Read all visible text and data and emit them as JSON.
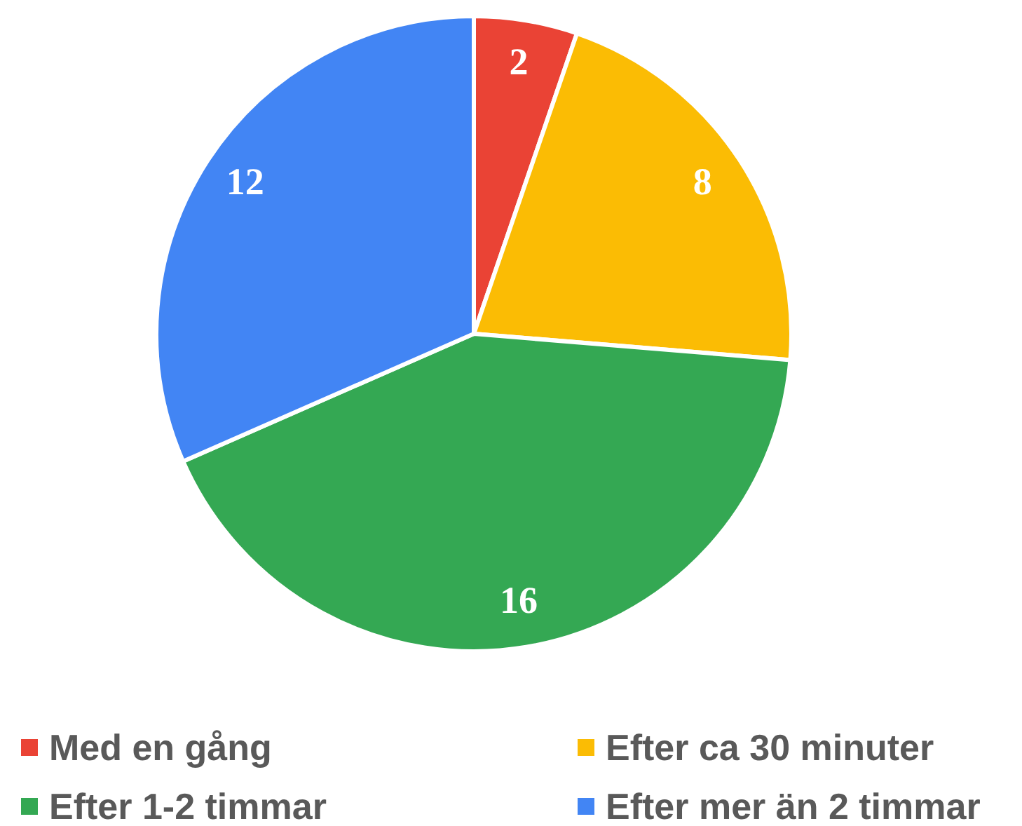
{
  "chart_data": {
    "type": "pie",
    "categories": [
      "Med en gång",
      "Efter ca 30 minuter",
      "Efter 1-2 timmar",
      "Efter mer än 2 timmar"
    ],
    "values": [
      2,
      8,
      16,
      12
    ],
    "colors": [
      "#ea4335",
      "#fbbc04",
      "#34a853",
      "#4285f4"
    ],
    "data_labels": true,
    "legend": "bottom"
  }
}
